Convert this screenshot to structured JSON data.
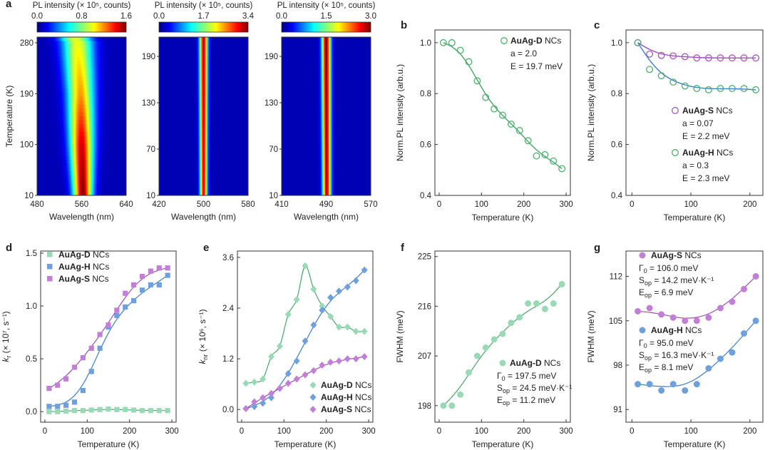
{
  "colors": {
    "green_marker": "#9ad9b5",
    "green_ring": "#4db06f",
    "green_line": "#4aa46a",
    "blue_marker": "#6ea0dc",
    "blue_line": "#3f7ec8",
    "purple_marker": "#c17fd6",
    "purple_ring": "#a857c0",
    "purple_line": "#9c4fb5"
  },
  "chart_data": [
    {
      "panel": "a",
      "type": "heatmap",
      "subplots": [
        {
          "name": "AuAg-D",
          "colorbar_title": "PL intensity (× 10⁵, counts)",
          "colorbar_ticks": [
            "0.0",
            "0.8",
            "1.6"
          ],
          "xlabel": "Wavelength (nm)",
          "xticks": [
            "480",
            "560",
            "640"
          ],
          "xlim": [
            480,
            640
          ],
          "ylabel": "Temperature (K)",
          "yticks": [
            "10",
            "100",
            "190",
            "280"
          ],
          "ylim": [
            10,
            290
          ],
          "peak_nm": [
            562,
            560,
            558,
            553,
            548
          ],
          "peak_T": [
            10,
            100,
            190,
            280,
            290
          ],
          "width_nm": [
            16,
            20,
            23,
            27,
            28
          ],
          "intensity": [
            1.0,
            0.92,
            0.72,
            0.6,
            0.58
          ]
        },
        {
          "name": "AuAg-H",
          "colorbar_title": "PL intensity (× 10⁵, counts)",
          "colorbar_ticks": [
            "0.0",
            "1.7",
            "3.4"
          ],
          "xlabel": "Wavelength (nm)",
          "xticks": [
            "420",
            "500",
            "580"
          ],
          "xlim": [
            420,
            580
          ],
          "yticks": [
            "10",
            "70",
            "130",
            "190"
          ],
          "ylim": [
            10,
            215
          ],
          "peak_nm": [
            500,
            500
          ],
          "peak_T": [
            10,
            215
          ],
          "width_nm": [
            6,
            7
          ],
          "intensity": [
            0.9,
            0.95
          ]
        },
        {
          "name": "AuAg-S",
          "colorbar_title": "PL intensity (× 10⁵, counts)",
          "colorbar_ticks": [
            "0.0",
            "1.5",
            "3.0"
          ],
          "xlabel": "Wavelength (nm)",
          "xticks": [
            "410",
            "490",
            "570"
          ],
          "xlim": [
            410,
            570
          ],
          "yticks": [
            "10",
            "70",
            "130",
            "190"
          ],
          "ylim": [
            10,
            215
          ],
          "peak_nm": [
            491,
            490
          ],
          "peak_T": [
            10,
            215
          ],
          "width_nm": [
            7,
            7.5
          ],
          "intensity": [
            0.95,
            1.0
          ]
        }
      ]
    },
    {
      "panel": "b",
      "type": "scatter",
      "xlabel": "Temperature (K)",
      "ylabel": "Norm.PL intensity (arb.u.)",
      "xlim": [
        -10,
        310
      ],
      "ylim": [
        0.4,
        1.05
      ],
      "xticks": [
        0,
        100,
        200,
        300
      ],
      "yticks": [
        0.4,
        0.6,
        0.8,
        1.0
      ],
      "ytick_labels": [
        "0.4",
        "0.6",
        "0.8",
        "1.0"
      ],
      "series": [
        {
          "name": "AuAg-D",
          "x": [
            10,
            30,
            50,
            70,
            90,
            110,
            130,
            150,
            170,
            190,
            210,
            230,
            250,
            270,
            290
          ],
          "y": [
            1.0,
            1.0,
            0.97,
            0.925,
            0.85,
            0.785,
            0.74,
            0.715,
            0.68,
            0.655,
            0.615,
            0.555,
            0.56,
            0.535,
            0.505
          ],
          "fit": {
            "a": 2.0,
            "E": 19.7
          }
        }
      ],
      "legend": {
        "title": "AuAg-D",
        "suffix": " NCs",
        "lines": [
          "a = 2.0",
          "E = 19.7 meV"
        ]
      }
    },
    {
      "panel": "c",
      "type": "scatter",
      "xlabel": "Temperature (K)",
      "ylabel": "Norm.PL intensity (arb.u.)",
      "xlim": [
        -10,
        222
      ],
      "ylim": [
        0.4,
        1.05
      ],
      "xticks": [
        0,
        100,
        200
      ],
      "yticks": [
        0.4,
        0.6,
        0.8,
        1.0
      ],
      "ytick_labels": [
        "0.4",
        "0.6",
        "0.8",
        "1.0"
      ],
      "series": [
        {
          "name": "AuAg-S",
          "x": [
            10,
            30,
            50,
            70,
            90,
            110,
            130,
            150,
            170,
            190,
            210
          ],
          "y": [
            1.0,
            0.955,
            0.95,
            0.948,
            0.945,
            0.94,
            0.94,
            0.94,
            0.94,
            0.94,
            0.94
          ],
          "fit": {
            "a": 0.07,
            "E": 2.2
          }
        },
        {
          "name": "AuAg-H",
          "x": [
            10,
            30,
            50,
            70,
            90,
            110,
            130,
            150,
            170,
            190,
            210
          ],
          "y": [
            1.0,
            0.895,
            0.87,
            0.845,
            0.83,
            0.82,
            0.815,
            0.82,
            0.82,
            0.82,
            0.815
          ],
          "fit": {
            "a": 0.3,
            "E": 2.3
          }
        }
      ],
      "legend": [
        {
          "title": "AuAg-S",
          "suffix": " NCs",
          "lines": [
            "a = 0.07",
            "E = 2.2 meV"
          ]
        },
        {
          "title": "AuAg-H",
          "suffix": " NCs",
          "lines": [
            "a = 0.3",
            "E = 2.3 meV"
          ]
        }
      ]
    },
    {
      "panel": "d",
      "type": "scatter",
      "xlabel": "Temperature (K)",
      "ylabel_main": "k",
      "ylabel_sub": "r",
      "ylabel_rest": " (× 10⁷, s⁻¹)",
      "xlim": [
        -10,
        310
      ],
      "ylim": [
        -0.1,
        1.52
      ],
      "xticks": [
        0,
        100,
        200,
        300
      ],
      "yticks": [
        0.0,
        0.5,
        1.0,
        1.5
      ],
      "ytick_labels": [
        "0.0",
        "0.5",
        "1.0",
        "1.5"
      ],
      "series": [
        {
          "name": "AuAg-D",
          "x": [
            10,
            30,
            50,
            70,
            90,
            110,
            130,
            150,
            170,
            190,
            210,
            230,
            250,
            270,
            290
          ],
          "y": [
            0.0,
            0.0,
            0.005,
            0.01,
            0.01,
            0.015,
            0.02,
            0.025,
            0.02,
            0.02,
            0.015,
            0.01,
            0.01,
            0.01,
            0.01
          ]
        },
        {
          "name": "AuAg-H",
          "x": [
            10,
            30,
            50,
            70,
            90,
            110,
            130,
            150,
            170,
            190,
            210,
            230,
            250,
            270,
            290
          ],
          "y": [
            0.05,
            0.05,
            0.06,
            0.09,
            0.2,
            0.38,
            0.6,
            0.8,
            0.91,
            0.99,
            1.05,
            1.15,
            1.2,
            1.2,
            1.29
          ]
        },
        {
          "name": "AuAg-S",
          "x": [
            10,
            30,
            50,
            70,
            90,
            110,
            130,
            150,
            170,
            190,
            210,
            230,
            250,
            270,
            290
          ],
          "y": [
            0.22,
            0.25,
            0.31,
            0.42,
            0.51,
            0.6,
            0.73,
            0.82,
            0.96,
            1.12,
            1.2,
            1.28,
            1.33,
            1.36,
            1.36
          ]
        }
      ],
      "legend": [
        {
          "title": "AuAg-D",
          "suffix": " NCs"
        },
        {
          "title": "AuAg-H",
          "suffix": " NCs"
        },
        {
          "title": "AuAg-S",
          "suffix": " NCs"
        }
      ]
    },
    {
      "panel": "e",
      "type": "scatter",
      "xlabel": "Temperature (K)",
      "ylabel_main": "k",
      "ylabel_sub": "nr",
      "ylabel_rest": " (× 10⁶, s⁻¹)",
      "xlim": [
        -10,
        310
      ],
      "ylim": [
        -0.3,
        3.75
      ],
      "xticks": [
        0,
        100,
        200,
        300
      ],
      "yticks": [
        0.0,
        1.2,
        2.4,
        3.6
      ],
      "ytick_labels": [
        "0.0",
        "1.2",
        "2.4",
        "3.6"
      ],
      "series": [
        {
          "name": "AuAg-D",
          "x": [
            10,
            30,
            50,
            70,
            90,
            110,
            130,
            150,
            170,
            190,
            210,
            230,
            250,
            270,
            290
          ],
          "y": [
            0.62,
            0.65,
            0.72,
            1.25,
            1.5,
            2.25,
            2.6,
            3.4,
            2.85,
            2.45,
            2.2,
            1.95,
            1.95,
            1.85,
            1.85
          ]
        },
        {
          "name": "AuAg-H",
          "x": [
            10,
            30,
            50,
            70,
            90,
            110,
            130,
            150,
            170,
            190,
            210,
            230,
            250,
            270,
            290
          ],
          "y": [
            0.02,
            0.07,
            0.15,
            0.28,
            0.5,
            0.85,
            1.15,
            1.62,
            2.0,
            2.35,
            2.65,
            2.8,
            2.9,
            3.05,
            3.3
          ]
        },
        {
          "name": "AuAg-S",
          "x": [
            10,
            30,
            50,
            70,
            90,
            110,
            130,
            150,
            170,
            190,
            210,
            230,
            250,
            270,
            290
          ],
          "y": [
            0.02,
            0.18,
            0.28,
            0.38,
            0.5,
            0.62,
            0.72,
            0.82,
            0.92,
            1.05,
            1.12,
            1.15,
            1.2,
            1.2,
            1.25
          ]
        }
      ],
      "legend": [
        {
          "title": "AuAg-D",
          "suffix": " NCs"
        },
        {
          "title": "AuAg-H",
          "suffix": " NCs"
        },
        {
          "title": "AuAg-S",
          "suffix": " NCs"
        }
      ]
    },
    {
      "panel": "f",
      "type": "scatter",
      "xlabel": "Temperature (K)",
      "ylabel": "FWHM (meV)",
      "xlim": [
        -10,
        310
      ],
      "ylim": [
        195,
        226
      ],
      "xticks": [
        0,
        100,
        200,
        300
      ],
      "yticks": [
        198,
        207,
        216,
        225
      ],
      "ytick_labels": [
        "198",
        "207",
        "216",
        "225"
      ],
      "series": [
        {
          "name": "AuAg-D",
          "x": [
            10,
            30,
            50,
            70,
            90,
            110,
            130,
            150,
            170,
            190,
            210,
            230,
            250,
            270,
            290
          ],
          "y": [
            198.0,
            198.0,
            200.0,
            204.0,
            207.0,
            208.5,
            210.0,
            211.0,
            213.0,
            214.0,
            216.5,
            216.5,
            215.5,
            216.5,
            220.0
          ]
        }
      ],
      "legend": {
        "title": "AuAg-D",
        "suffix": " NCs",
        "lines": [
          {
            "pre": "Γ",
            "sub": "0",
            "post": " = 197.5 meV"
          },
          {
            "pre": "S",
            "sub": "op",
            "post": " = 24.5 meV·K⁻¹"
          },
          {
            "pre": "E",
            "sub": "op",
            "post": " = 11.2 meV"
          }
        ]
      }
    },
    {
      "panel": "g",
      "type": "scatter",
      "xlabel": "Temperature (K)",
      "ylabel": "FWHM (meV)",
      "xlim": [
        -10,
        222
      ],
      "ylim": [
        89,
        116
      ],
      "xticks": [
        0,
        100,
        200
      ],
      "yticks": [
        91,
        98,
        105,
        112
      ],
      "ytick_labels": [
        "91",
        "98",
        "105",
        "112"
      ],
      "series": [
        {
          "name": "AuAg-S",
          "x": [
            10,
            30,
            50,
            70,
            90,
            110,
            130,
            150,
            170,
            190,
            210
          ],
          "y": [
            106.5,
            107.0,
            106.0,
            105.5,
            105.0,
            105.0,
            105.5,
            107.0,
            108.0,
            110.0,
            112.0
          ]
        },
        {
          "name": "AuAg-H",
          "x": [
            10,
            30,
            50,
            70,
            90,
            110,
            130,
            150,
            170,
            190,
            210
          ],
          "y": [
            95.0,
            95.0,
            94.0,
            95.0,
            94.0,
            95.0,
            97.5,
            99.0,
            100.0,
            103.0,
            105.0
          ]
        }
      ],
      "legend": [
        {
          "title": "AuAg-S",
          "suffix": " NCs",
          "lines": [
            {
              "pre": "Γ",
              "sub": "0",
              "post": " = 106.0 meV"
            },
            {
              "pre": "S",
              "sub": "op",
              "post": " = 14.2 meV·K⁻¹"
            },
            {
              "pre": "E",
              "sub": "op",
              "post": " = 6.9 meV"
            }
          ]
        },
        {
          "title": "AuAg-H",
          "suffix": " NCs",
          "lines": [
            {
              "pre": "Γ",
              "sub": "0",
              "post": " = 95.0 meV"
            },
            {
              "pre": "S",
              "sub": "op",
              "post": " = 16.3 meV·K⁻¹"
            },
            {
              "pre": "E",
              "sub": "op",
              "post": " = 8.1 meV"
            }
          ]
        }
      ]
    }
  ]
}
